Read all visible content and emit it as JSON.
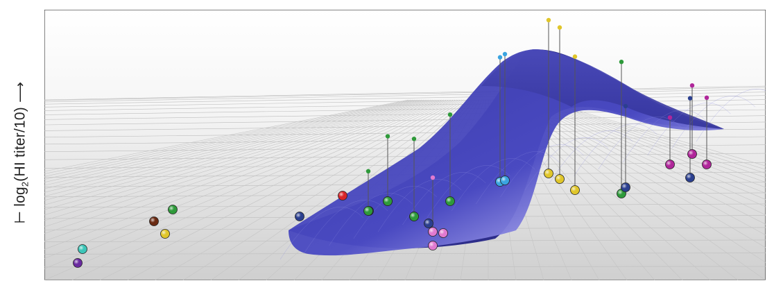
{
  "chart_data": {
    "type": "surface-3d",
    "ylabel": {
      "prefix": "log",
      "subscript": "2",
      "suffix": "(HI titer/10)"
    },
    "colors": {
      "surface": "#3f3fb5",
      "green": "#2e9a3a",
      "yellow": "#e0c62a",
      "blue_dark": "#2b3f8f",
      "blue_light": "#3aa4e0",
      "magenta": "#b0269a",
      "pink": "#e07ad0",
      "red": "#d8252a",
      "brown": "#6a2a12",
      "cyan": "#3cc6b8",
      "purple": "#6a2aa0"
    },
    "points": [
      {
        "color": "purple",
        "value": 0.0
      },
      {
        "color": "cyan",
        "value": 0.0
      },
      {
        "color": "brown",
        "value": 0.0
      },
      {
        "color": "yellow",
        "value": 0.0
      },
      {
        "color": "green",
        "value": 0.0
      },
      {
        "color": "blue_dark",
        "value": 0.0
      },
      {
        "color": "red",
        "value": 0.0
      },
      {
        "color": "blue_dark",
        "value": 0.0
      },
      {
        "color": "green",
        "value": 2.2
      },
      {
        "color": "blue_dark",
        "value": 0.0
      },
      {
        "color": "green",
        "value": 3.6
      },
      {
        "color": "blue_dark",
        "value": 0.0
      },
      {
        "color": "green",
        "value": 4.3
      },
      {
        "color": "blue_dark",
        "value": 0.0
      },
      {
        "color": "pink",
        "value": 3.0
      },
      {
        "color": "green",
        "value": 4.8
      },
      {
        "color": "blue_light",
        "value": 6.9
      },
      {
        "color": "blue_light",
        "value": 7.0
      },
      {
        "color": "yellow",
        "value": 8.5
      },
      {
        "color": "yellow",
        "value": 8.4
      },
      {
        "color": "yellow",
        "value": 7.4
      },
      {
        "color": "green",
        "value": 7.3
      },
      {
        "color": "blue_dark",
        "value": 4.5
      },
      {
        "color": "magenta",
        "value": 2.6
      },
      {
        "color": "blue_dark",
        "value": 4.4
      },
      {
        "color": "magenta",
        "value": 3.8
      },
      {
        "color": "magenta",
        "value": 3.7
      },
      {
        "color": "pink",
        "value": 0.0
      },
      {
        "color": "pink",
        "value": 0.0
      }
    ]
  }
}
